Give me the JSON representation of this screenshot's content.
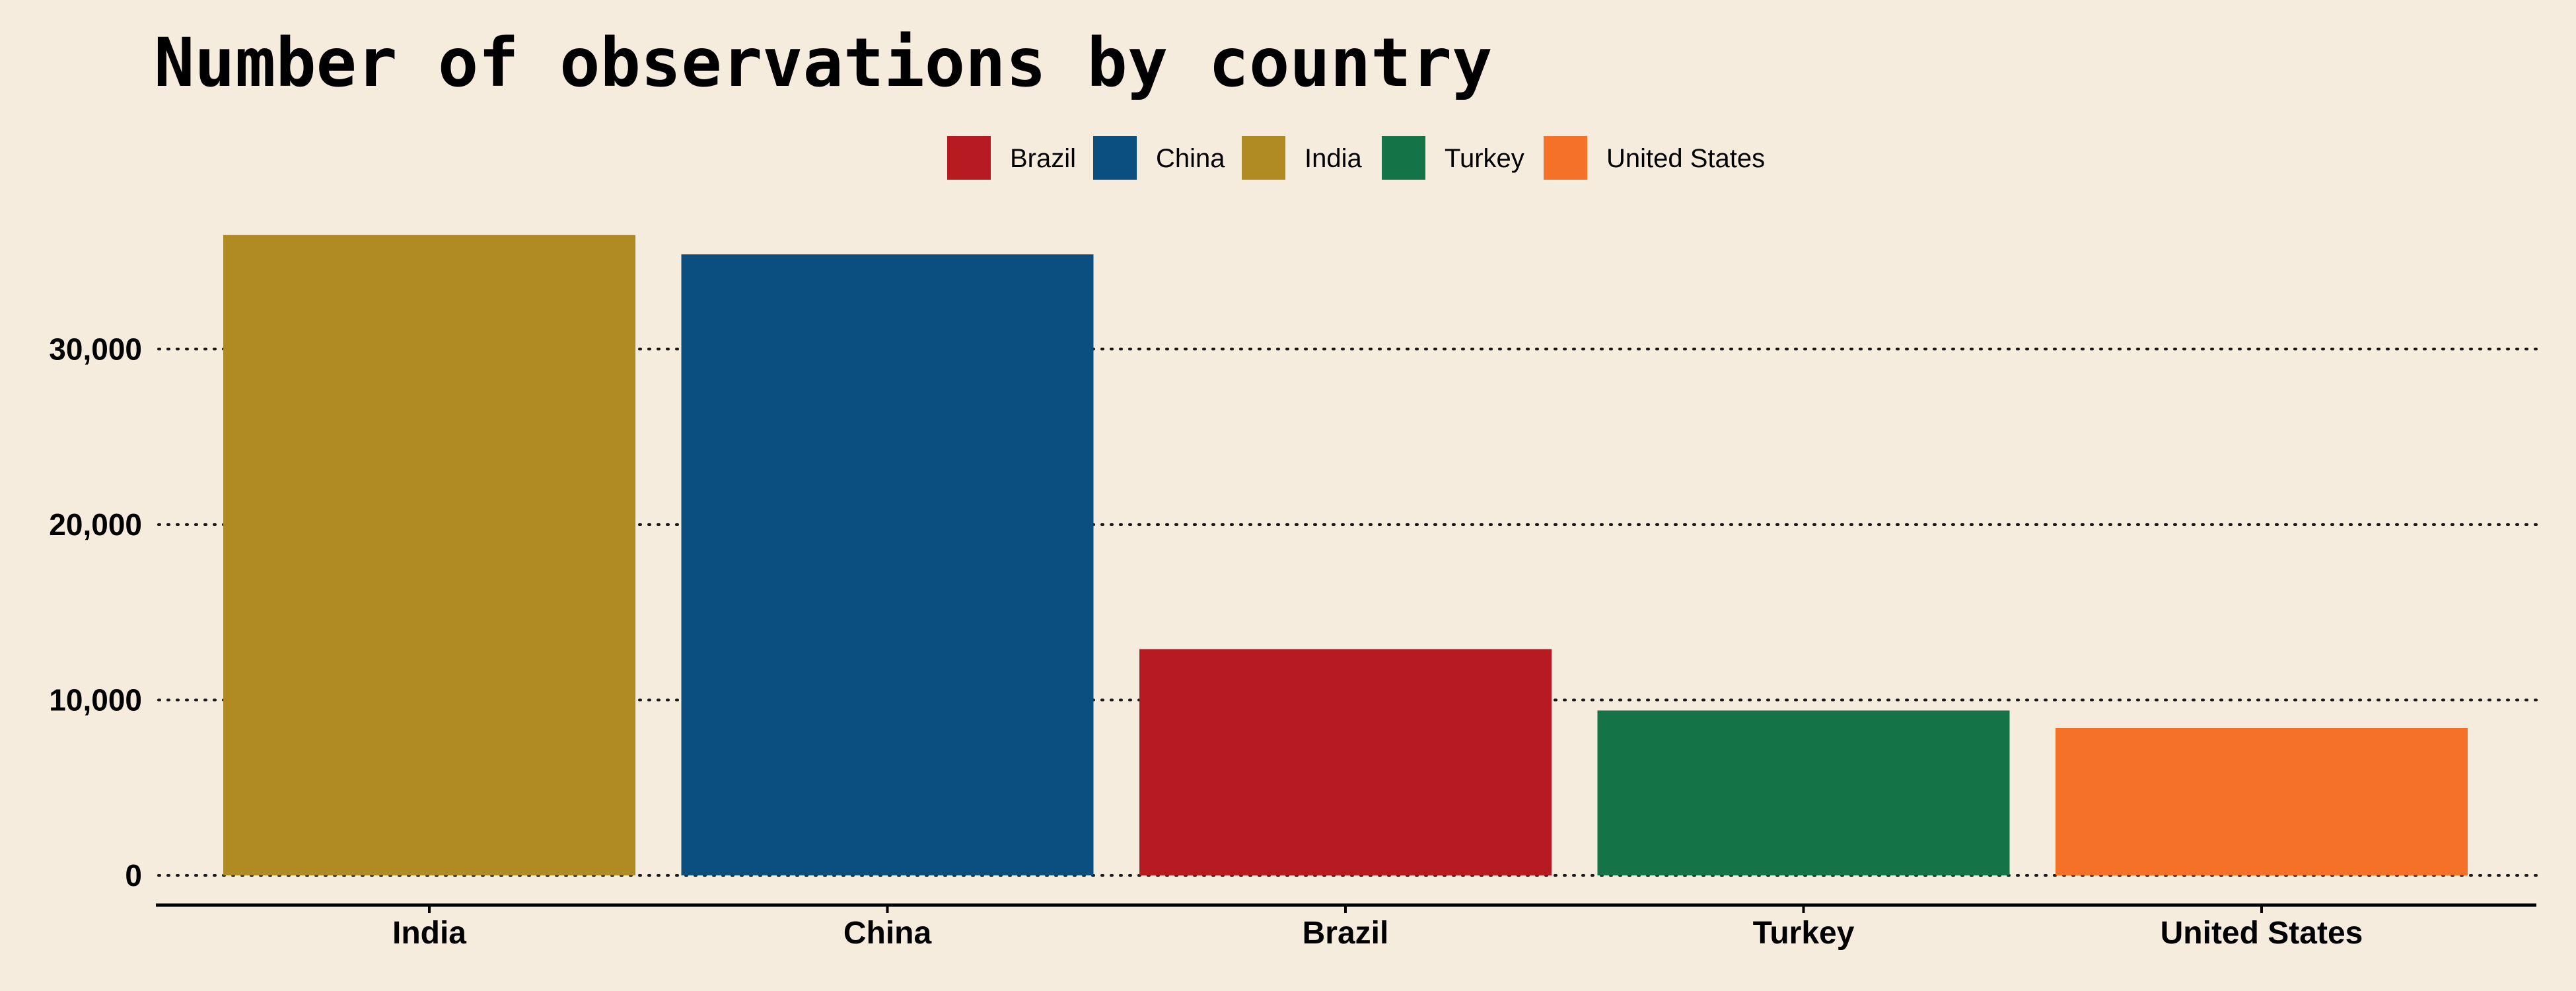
{
  "chart_data": {
    "type": "bar",
    "title": "Number of observations by country",
    "xlabel": "",
    "ylabel": "",
    "categories": [
      "India",
      "China",
      "Brazil",
      "Turkey",
      "United States"
    ],
    "values": [
      36500,
      35400,
      12900,
      9400,
      8400
    ],
    "colors": [
      "#b08a23",
      "#0b4f80",
      "#b81a22",
      "#147347",
      "#f67128"
    ],
    "ylim": [
      0,
      38000
    ],
    "yticks": [
      0,
      10000,
      20000,
      30000
    ],
    "ytick_labels": [
      "0",
      "10,000",
      "20,000",
      "30,000"
    ],
    "grid": true,
    "legend": {
      "position": "top-center",
      "items": [
        {
          "label": "Brazil",
          "color": "#b81a22"
        },
        {
          "label": "China",
          "color": "#0b4f80"
        },
        {
          "label": "India",
          "color": "#b08a23"
        },
        {
          "label": "Turkey",
          "color": "#147347"
        },
        {
          "label": "United States",
          "color": "#f67128"
        }
      ]
    }
  }
}
